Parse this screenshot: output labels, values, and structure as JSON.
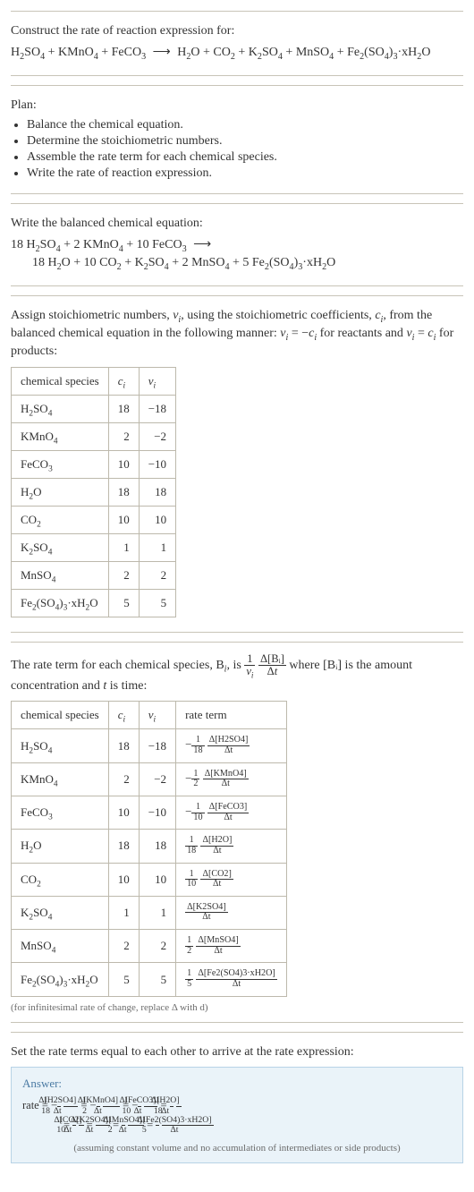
{
  "intro": {
    "prompt_line": "Construct the rate of reaction expression for:",
    "reactants": [
      "H₂SO₄",
      "KMnO₄",
      "FeCO₃"
    ],
    "products": [
      "H₂O",
      "CO₂",
      "K₂SO₄",
      "MnSO₄",
      "Fe₂(SO₄)₃·xH₂O"
    ]
  },
  "plan": {
    "title": "Plan:",
    "items": [
      "Balance the chemical equation.",
      "Determine the stoichiometric numbers.",
      "Assemble the rate term for each chemical species.",
      "Write the rate of reaction expression."
    ]
  },
  "balanced": {
    "title": "Write the balanced chemical equation:",
    "lhs": [
      {
        "coef": "18",
        "sp": "H₂SO₄"
      },
      {
        "coef": "2",
        "sp": "KMnO₄"
      },
      {
        "coef": "10",
        "sp": "FeCO₃"
      }
    ],
    "rhs": [
      {
        "coef": "18",
        "sp": "H₂O"
      },
      {
        "coef": "10",
        "sp": "CO₂"
      },
      {
        "coef": "",
        "sp": "K₂SO₄"
      },
      {
        "coef": "2",
        "sp": "MnSO₄"
      },
      {
        "coef": "5",
        "sp": "Fe₂(SO₄)₃·xH₂O"
      }
    ]
  },
  "assign_intro_parts": {
    "a": "Assign stoichiometric numbers, ",
    "b": ", using the stoichiometric coefficients, ",
    "c": ", from the balanced chemical equation in the following manner: ",
    "d": " for reactants and ",
    "e": " for products:"
  },
  "symbols": {
    "nu_i": "ν_i",
    "c_i": "c_i",
    "nu_eq_neg_c": "ν_i = −c_i",
    "nu_eq_c": "ν_i = c_i"
  },
  "table1": {
    "headers": [
      "chemical species",
      "cᵢ",
      "νᵢ"
    ],
    "rows": [
      {
        "sp": "H₂SO₄",
        "c": "18",
        "nu": "−18"
      },
      {
        "sp": "KMnO₄",
        "c": "2",
        "nu": "−2"
      },
      {
        "sp": "FeCO₃",
        "c": "10",
        "nu": "−10"
      },
      {
        "sp": "H₂O",
        "c": "18",
        "nu": "18"
      },
      {
        "sp": "CO₂",
        "c": "10",
        "nu": "10"
      },
      {
        "sp": "K₂SO₄",
        "c": "1",
        "nu": "1"
      },
      {
        "sp": "MnSO₄",
        "c": "2",
        "nu": "2"
      },
      {
        "sp": "Fe₂(SO₄)₃·xH₂O",
        "c": "5",
        "nu": "5"
      }
    ]
  },
  "rate_intro": {
    "before_B": "The rate term for each chemical species, ",
    "B": "Bᵢ",
    "is": ", is ",
    "where": " where [Bᵢ] is the amount concentration and ",
    "t_ital": "t",
    "is_time": " is time:"
  },
  "rate_def_frac": {
    "coef_num": "1",
    "coef_den": "νᵢ",
    "num": "Δ[Bᵢ]",
    "den": "Δt"
  },
  "table2": {
    "headers": [
      "chemical species",
      "cᵢ",
      "νᵢ",
      "rate term"
    ],
    "rows": [
      {
        "sp": "H₂SO₄",
        "c": "18",
        "nu": "−18",
        "sign": "−",
        "fnum": "1",
        "fden": "18",
        "dnum": "Δ[H2SO4]",
        "dden": "Δt"
      },
      {
        "sp": "KMnO₄",
        "c": "2",
        "nu": "−2",
        "sign": "−",
        "fnum": "1",
        "fden": "2",
        "dnum": "Δ[KMnO4]",
        "dden": "Δt"
      },
      {
        "sp": "FeCO₃",
        "c": "10",
        "nu": "−10",
        "sign": "−",
        "fnum": "1",
        "fden": "10",
        "dnum": "Δ[FeCO3]",
        "dden": "Δt"
      },
      {
        "sp": "H₂O",
        "c": "18",
        "nu": "18",
        "sign": "",
        "fnum": "1",
        "fden": "18",
        "dnum": "Δ[H2O]",
        "dden": "Δt"
      },
      {
        "sp": "CO₂",
        "c": "10",
        "nu": "10",
        "sign": "",
        "fnum": "1",
        "fden": "10",
        "dnum": "Δ[CO2]",
        "dden": "Δt"
      },
      {
        "sp": "K₂SO₄",
        "c": "1",
        "nu": "1",
        "sign": "",
        "fnum": "",
        "fden": "",
        "dnum": "Δ[K2SO4]",
        "dden": "Δt"
      },
      {
        "sp": "MnSO₄",
        "c": "2",
        "nu": "2",
        "sign": "",
        "fnum": "1",
        "fden": "2",
        "dnum": "Δ[MnSO4]",
        "dden": "Δt"
      },
      {
        "sp": "Fe₂(SO₄)₃·xH₂O",
        "c": "5",
        "nu": "5",
        "sign": "",
        "fnum": "1",
        "fden": "5",
        "dnum": "Δ[Fe2(SO4)3·xH2O]",
        "dden": "Δt"
      }
    ],
    "note": "(for infinitesimal rate of change, replace Δ with d)"
  },
  "final": {
    "lead": "Set the rate terms equal to each other to arrive at the rate expression:",
    "answer_label": "Answer:",
    "rate_prefix": "rate = ",
    "terms": [
      {
        "sign": "−",
        "fnum": "1",
        "fden": "18",
        "dnum": "Δ[H2SO4]",
        "dden": "Δt"
      },
      {
        "sign": "−",
        "fnum": "1",
        "fden": "2",
        "dnum": "Δ[KMnO4]",
        "dden": "Δt"
      },
      {
        "sign": "−",
        "fnum": "1",
        "fden": "10",
        "dnum": "Δ[FeCO3]",
        "dden": "Δt"
      },
      {
        "sign": "",
        "fnum": "1",
        "fden": "18",
        "dnum": "Δ[H2O]",
        "dden": "Δt"
      },
      {
        "sign": "",
        "fnum": "1",
        "fden": "10",
        "dnum": "Δ[CO2]",
        "dden": "Δt"
      },
      {
        "sign": "",
        "fnum": "",
        "fden": "",
        "dnum": "Δ[K2SO4]",
        "dden": "Δt"
      },
      {
        "sign": "",
        "fnum": "1",
        "fden": "2",
        "dnum": "Δ[MnSO4]",
        "dden": "Δt"
      },
      {
        "sign": "",
        "fnum": "1",
        "fden": "5",
        "dnum": "Δ[Fe2(SO4)3·xH2O]",
        "dden": "Δt"
      }
    ],
    "assume": "(assuming constant volume and no accumulation of intermediates or side products)"
  },
  "colors": {
    "rule": "#c8c4b8",
    "table_border": "#bdb9ac",
    "answer_border": "#b7d3e6",
    "answer_bg": "#eaf3f9",
    "answer_title": "#4a7aa3",
    "note": "#6b6b6b",
    "text": "#333333",
    "bg": "#ffffff"
  }
}
